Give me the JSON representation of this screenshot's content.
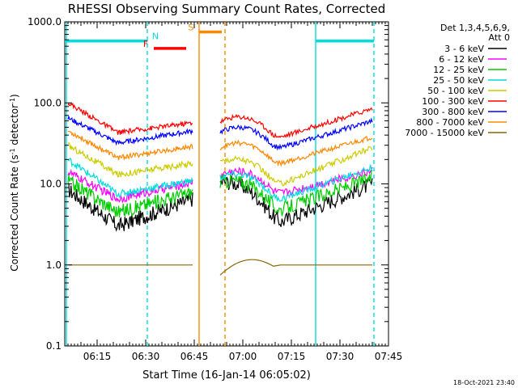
{
  "chart_data": {
    "type": "line",
    "title": "RHESSI Observing Summary Count Rates, Corrected",
    "xlabel": "Start Time (16-Jan-14 06:05:02)",
    "ylabel_main": "Corrected Count Rate (s",
    "ylabel_sup1": "-1",
    "ylabel_mid": " detector",
    "ylabel_sup2": "-1",
    "ylabel_end": ")",
    "yscale": "log",
    "ylim": [
      0.1,
      1000
    ],
    "xlim_min": [
      5,
      105
    ],
    "y_ticks": [
      {
        "value": 0.1,
        "label": "0.1"
      },
      {
        "value": 1,
        "label": "1.0"
      },
      {
        "value": 10,
        "label": "10.0"
      },
      {
        "value": 100,
        "label": "100.0"
      },
      {
        "value": 1000,
        "label": "1000.0"
      }
    ],
    "x_ticks": [
      {
        "value": 15,
        "label": "06:15"
      },
      {
        "value": 30,
        "label": "06:30"
      },
      {
        "value": 45,
        "label": "06:45"
      },
      {
        "value": 60,
        "label": "07:00"
      },
      {
        "value": 75,
        "label": "07:15"
      },
      {
        "value": 90,
        "label": "07:30"
      },
      {
        "value": 105,
        "label": "07:45"
      }
    ],
    "legend_header": [
      "Det 1,3,4,5,6,9,",
      "Att 0"
    ],
    "legend_placement": "right",
    "series": [
      {
        "name": "3 - 6 keV",
        "color": "#000000",
        "pre": [
          8.5,
          3.0,
          6.5
        ],
        "post": [
          14.0,
          3.4,
          10.0
        ],
        "noise": 0.22
      },
      {
        "name": "6 - 12 keV",
        "color": "#ff00ff",
        "pre": [
          14.0,
          6.5,
          10.5
        ],
        "post": [
          17.0,
          7.6,
          14.5
        ],
        "noise": 0.12
      },
      {
        "name": "12 - 25 keV",
        "color": "#00cc00",
        "pre": [
          11.0,
          4.5,
          8.0
        ],
        "post": [
          14.0,
          4.8,
          12.0
        ],
        "noise": 0.2
      },
      {
        "name": "25 - 50 keV",
        "color": "#00dddd",
        "pre": [
          20.0,
          7.5,
          11.0
        ],
        "post": [
          16.0,
          6.5,
          16.0
        ],
        "noise": 0.1
      },
      {
        "name": "50 - 100 keV",
        "color": "#cccc00",
        "pre": [
          30.0,
          13.0,
          18.0
        ],
        "post": [
          25.0,
          10.0,
          28.0
        ],
        "noise": 0.09
      },
      {
        "name": "100 - 300 keV",
        "color": "#ff0000",
        "pre": [
          100.0,
          43.0,
          57.0
        ],
        "post": [
          78.0,
          38.0,
          85.0
        ],
        "noise": 0.07
      },
      {
        "name": "300 - 800 keV",
        "color": "#0000ff",
        "pre": [
          65.0,
          32.0,
          45.0
        ],
        "post": [
          58.0,
          28.0,
          60.0
        ],
        "noise": 0.07
      },
      {
        "name": "800 - 7000 keV",
        "color": "#ff8800",
        "pre": [
          45.0,
          21.0,
          29.0
        ],
        "post": [
          37.0,
          18.0,
          38.0
        ],
        "noise": 0.07
      },
      {
        "name": "7000 - 15000 keV",
        "color": "#886600",
        "pre": [
          1.0,
          1.0,
          1.0
        ],
        "post": [
          1.0,
          1.0,
          1.0
        ],
        "noise": 0.0
      }
    ],
    "bars": [
      {
        "label": "N",
        "color": "#00dddd",
        "start": 5,
        "end": 30.5,
        "value": 580,
        "label_x": 33
      },
      {
        "label": "F",
        "color": "#ff0000",
        "start": 32.5,
        "end": 42.5,
        "value": 470,
        "label_x": 30
      },
      {
        "label": "S",
        "color": "#ff8800",
        "start": 46.5,
        "end": 53.5,
        "value": 750,
        "label_x": 44
      },
      {
        "label": "",
        "color": "#00dddd",
        "start": 82.5,
        "end": 100.5,
        "value": 580,
        "label_x": 0
      }
    ],
    "vlines": [
      {
        "x": 5.5,
        "color": "#00dddd",
        "dashed": false
      },
      {
        "x": 30.5,
        "color": "#00dddd",
        "dashed": true
      },
      {
        "x": 46.5,
        "color": "#ff8800",
        "dashed": false
      },
      {
        "x": 54.5,
        "color": "#ff8800",
        "dashed": true
      },
      {
        "x": 82.5,
        "color": "#00dddd",
        "dashed": false
      },
      {
        "x": 100.5,
        "color": "#00dddd",
        "dashed": true
      }
    ],
    "data_gap": [
      44.5,
      53.0
    ],
    "footer_date": "18-Oct-2021 23:40"
  }
}
